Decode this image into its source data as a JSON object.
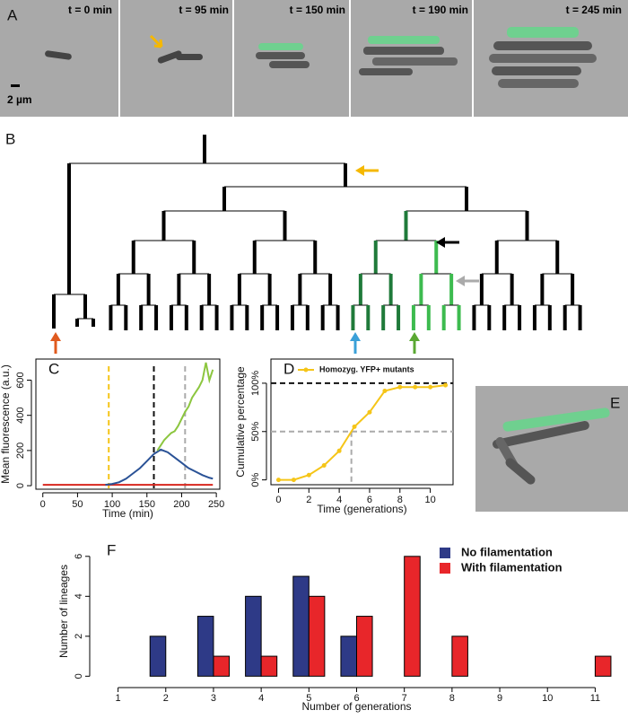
{
  "panels": {
    "A": {
      "label": "A",
      "times": [
        "t = 0 min",
        "t = 95 min",
        "t = 150 min",
        "t = 190 min",
        "t = 245 min"
      ],
      "scale": "2 µm"
    },
    "B": {
      "label": "B"
    },
    "E": {
      "label": "E"
    }
  },
  "chart_data": [
    {
      "type": "line",
      "panel_label": "C",
      "xlabel": "Time (min)",
      "ylabel": "Mean fluorescence (a.u.)",
      "xlim": [
        -10,
        255
      ],
      "ylim": [
        -20,
        720
      ],
      "xticks": [
        0,
        50,
        100,
        150,
        200,
        250
      ],
      "yticks": [
        0,
        200,
        400,
        600
      ],
      "reference_lines": [
        {
          "axis": "x",
          "value": 95,
          "color": "#f5c518"
        },
        {
          "axis": "x",
          "value": 160,
          "color": "#111111"
        },
        {
          "axis": "x",
          "value": 205,
          "color": "#aaaaaa"
        }
      ],
      "series": [
        {
          "color": "#d7261e",
          "x": [
            0,
            50,
            100,
            150,
            200,
            245
          ],
          "values": [
            5,
            5,
            5,
            5,
            5,
            5
          ]
        },
        {
          "color": "#2a5296",
          "x": [
            90,
            100,
            110,
            120,
            130,
            140,
            150,
            160,
            170,
            180,
            190,
            200,
            210,
            220,
            230,
            240,
            245
          ],
          "values": [
            5,
            10,
            20,
            40,
            70,
            100,
            140,
            180,
            205,
            190,
            160,
            130,
            100,
            80,
            60,
            45,
            40
          ]
        },
        {
          "color": "#8cc63f",
          "x": [
            165,
            170,
            175,
            180,
            185,
            190,
            195,
            200,
            205,
            210,
            215,
            220,
            225,
            230,
            235,
            240,
            245
          ],
          "values": [
            200,
            230,
            260,
            280,
            300,
            310,
            340,
            380,
            420,
            450,
            500,
            530,
            560,
            600,
            700,
            600,
            660
          ]
        }
      ]
    },
    {
      "type": "line",
      "panel_label": "D",
      "xlabel": "Time (generations)",
      "ylabel": "Cumulative percentage",
      "xlim": [
        -0.5,
        11.5
      ],
      "ylim": [
        -5,
        125
      ],
      "xticks": [
        0,
        2,
        4,
        6,
        8,
        10
      ],
      "yticks": [
        {
          "value": 0,
          "label": "0%"
        },
        {
          "value": 50,
          "label": "50%"
        },
        {
          "value": 100,
          "label": "100%"
        }
      ],
      "legend": "top",
      "reference_lines": [
        {
          "axis": "y",
          "value": 100,
          "color": "#111111"
        },
        {
          "axis": "y",
          "value": 50,
          "color": "#aaaaaa"
        },
        {
          "axis": "x",
          "value": 4.8,
          "color": "#aaaaaa"
        }
      ],
      "series": [
        {
          "name": "Homozyg. YFP+ mutants",
          "color": "#f5c518",
          "markers": true,
          "x": [
            0,
            1,
            2,
            3,
            4,
            5,
            6,
            7,
            8,
            9,
            10,
            11
          ],
          "values": [
            0,
            0,
            5,
            15,
            30,
            55,
            70,
            92,
            96,
            96,
            96,
            98
          ]
        }
      ]
    },
    {
      "type": "bar",
      "panel_label": "F",
      "xlabel": "Number of generations",
      "ylabel": "Number of lineages",
      "categories": [
        "1",
        "2",
        "3",
        "4",
        "5",
        "6",
        "7",
        "8",
        "9",
        "10",
        "11"
      ],
      "ylim": [
        -0.3,
        6.8
      ],
      "yticks": [
        0,
        2,
        4,
        6
      ],
      "legend": "top-right",
      "series": [
        {
          "name": "No filamentation",
          "color": "#2e3a87",
          "values": [
            0,
            2,
            3,
            4,
            5,
            2,
            0,
            0,
            0,
            0,
            0
          ]
        },
        {
          "name": "With filamentation",
          "color": "#e8262a",
          "values": [
            0,
            0,
            1,
            1,
            4,
            3,
            6,
            2,
            0,
            0,
            1
          ]
        }
      ]
    }
  ]
}
